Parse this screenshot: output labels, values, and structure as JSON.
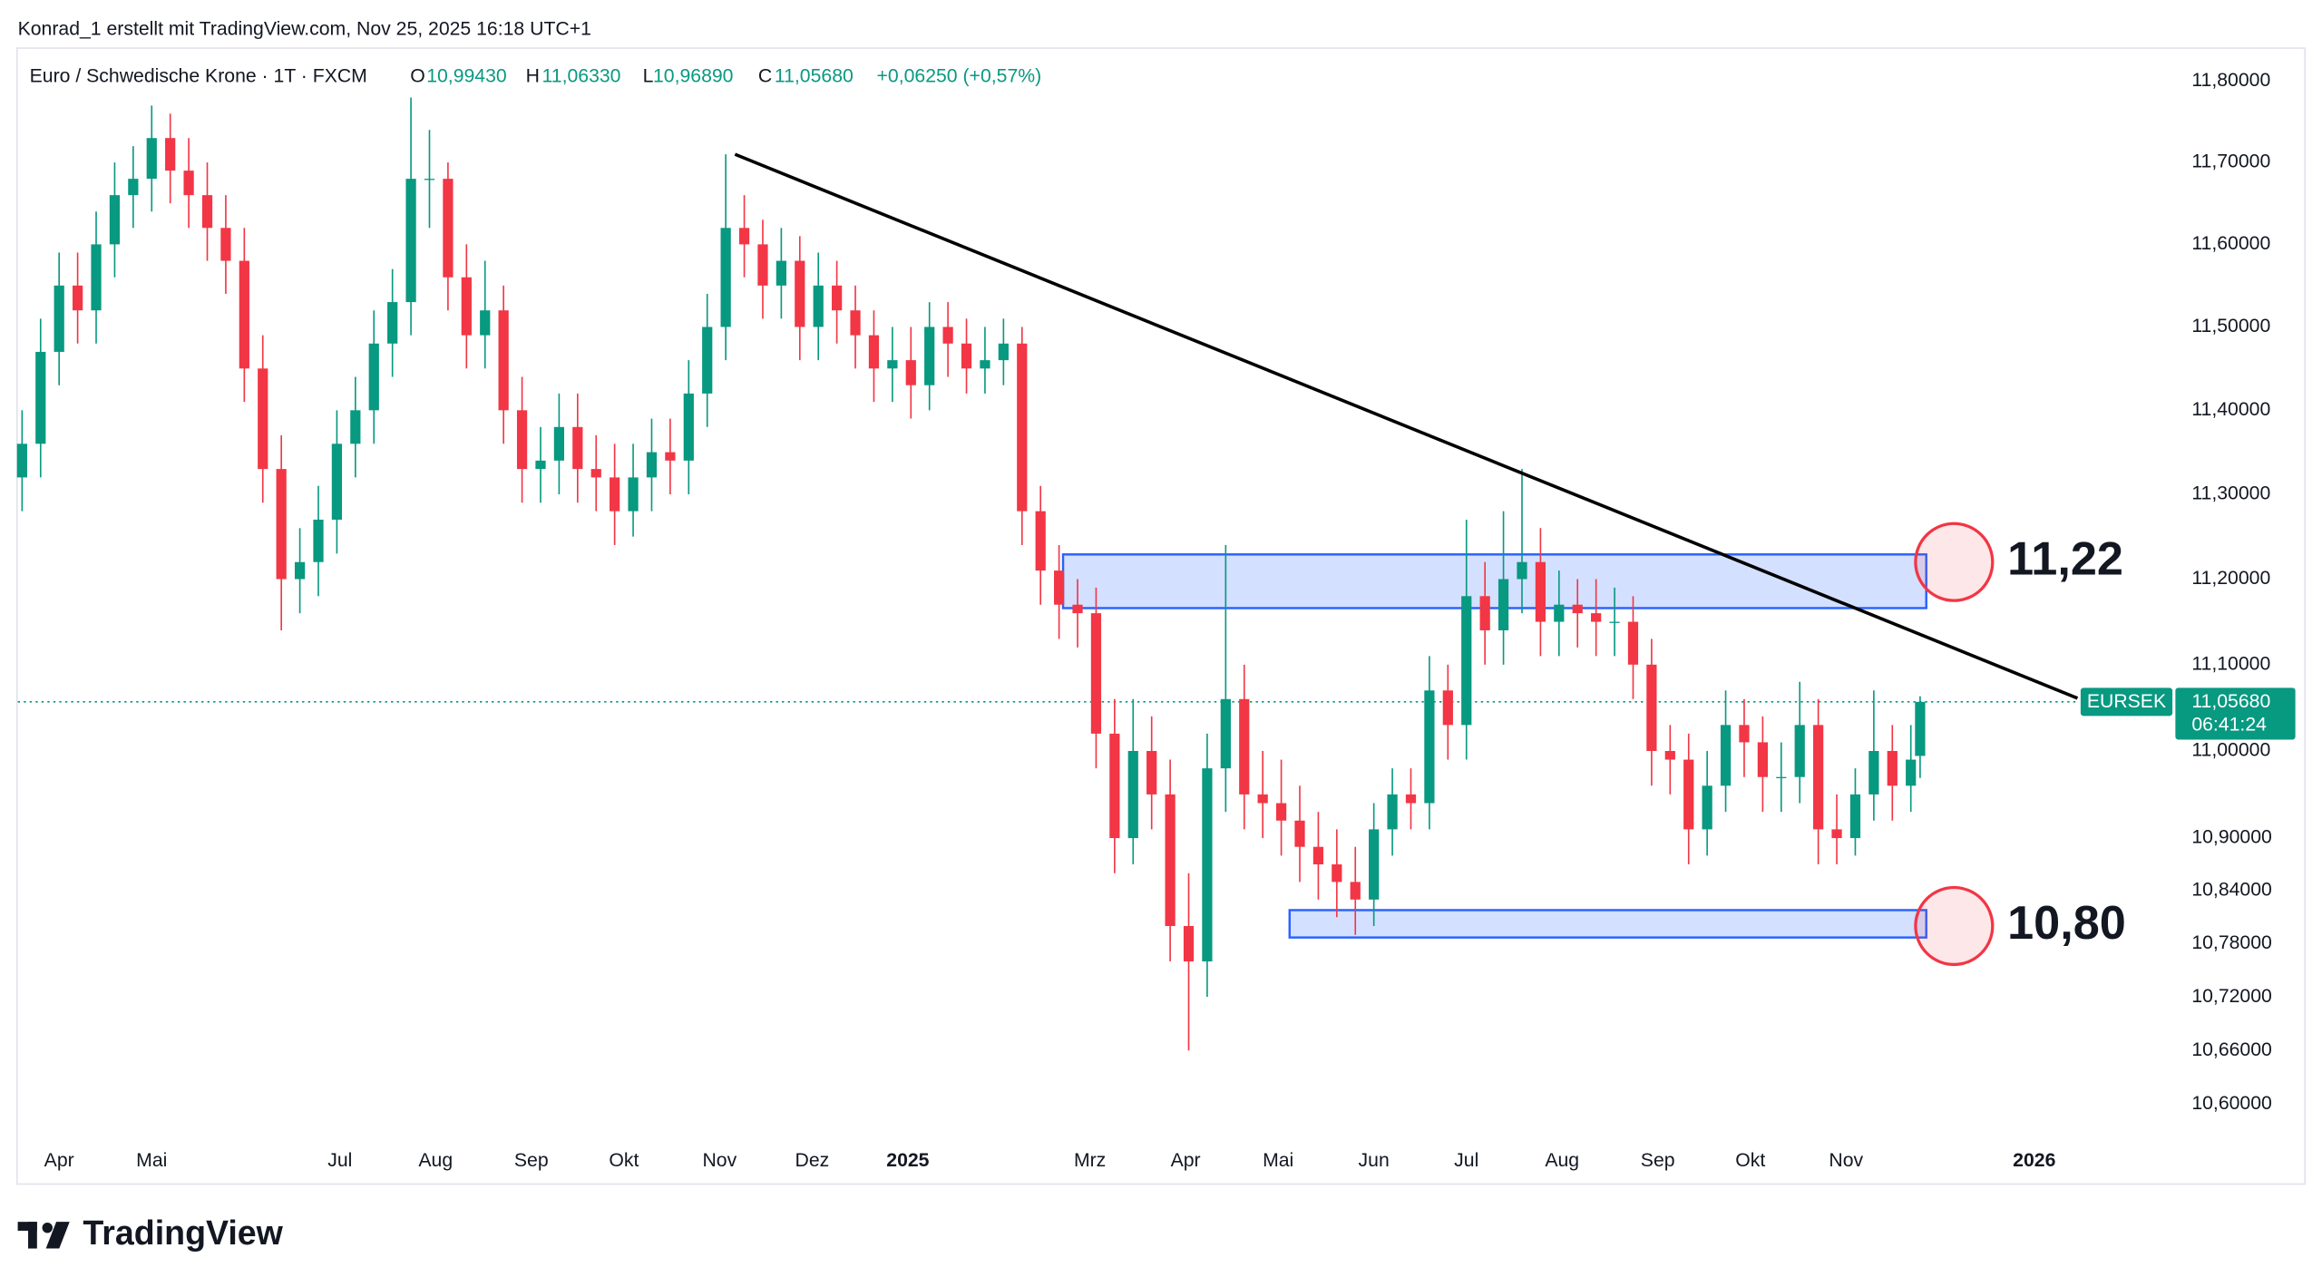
{
  "header": {
    "attribution": "Konrad_1 erstellt mit TradingView.com, Nov 25, 2025 16:18 UTC+1"
  },
  "footer": {
    "brand": "TradingView"
  },
  "chart_data": {
    "type": "candlestick",
    "title": "Euro / Schwedische Krone · 1T · FXCM",
    "ohlc_legend": [
      {
        "key": "O",
        "text": "10,99430"
      },
      {
        "key": "H",
        "text": "11,06330"
      },
      {
        "key": "L",
        "text": "10,96890"
      },
      {
        "key": "C",
        "text": "11,05680"
      }
    ],
    "change": "+0,06250 (+0,57%)",
    "log_scale": true,
    "colors": {
      "up": "#089981",
      "down": "#f23645"
    },
    "xlim": [
      -13.4,
      683.8
    ],
    "ylim": [
      10.56,
      11.842
    ],
    "xticks": [
      {
        "value": 0,
        "label": "Apr"
      },
      {
        "value": 30,
        "label": "Mai"
      },
      {
        "value": 91,
        "label": "Jul"
      },
      {
        "value": 122,
        "label": "Aug"
      },
      {
        "value": 153,
        "label": "Sep"
      },
      {
        "value": 183,
        "label": "Okt"
      },
      {
        "value": 214,
        "label": "Nov"
      },
      {
        "value": 244,
        "label": "Dez"
      },
      {
        "value": 275,
        "label": "2025"
      },
      {
        "value": 334,
        "label": "Mrz"
      },
      {
        "value": 365,
        "label": "Apr"
      },
      {
        "value": 395,
        "label": "Mai"
      },
      {
        "value": 426,
        "label": "Jun"
      },
      {
        "value": 456,
        "label": "Jul"
      },
      {
        "value": 487,
        "label": "Aug"
      },
      {
        "value": 518,
        "label": "Sep"
      },
      {
        "value": 548,
        "label": "Okt"
      },
      {
        "value": 579,
        "label": "Nov"
      },
      {
        "value": 640,
        "label": "2026"
      }
    ],
    "yticks": [
      {
        "value": 11.8,
        "label": "11,80000"
      },
      {
        "value": 11.7,
        "label": "11,70000"
      },
      {
        "value": 11.6,
        "label": "11,60000"
      },
      {
        "value": 11.5,
        "label": "11,50000"
      },
      {
        "value": 11.4,
        "label": "11,40000"
      },
      {
        "value": 11.3,
        "label": "11,30000"
      },
      {
        "value": 11.2,
        "label": "11,20000"
      },
      {
        "value": 11.1,
        "label": "11,10000"
      },
      {
        "value": 11.0,
        "label": "11,00000"
      },
      {
        "value": 10.9,
        "label": "10,90000"
      },
      {
        "value": 10.84,
        "label": "10,84000"
      },
      {
        "value": 10.78,
        "label": "10,78000"
      },
      {
        "value": 10.72,
        "label": "10,72000"
      },
      {
        "value": 10.66,
        "label": "10,66000"
      },
      {
        "value": 10.6,
        "label": "10,60000"
      }
    ],
    "x": [
      -12,
      -6,
      0,
      6,
      12,
      18,
      24,
      30,
      36,
      42,
      48,
      54,
      60,
      66,
      72,
      78,
      84,
      90,
      96,
      102,
      108,
      114,
      120,
      126,
      132,
      138,
      144,
      150,
      156,
      162,
      168,
      174,
      180,
      186,
      192,
      198,
      204,
      210,
      216,
      222,
      228,
      234,
      240,
      246,
      252,
      258,
      264,
      270,
      276,
      282,
      288,
      294,
      300,
      306,
      312,
      318,
      324,
      330,
      336,
      342,
      348,
      354,
      360,
      366,
      372,
      378,
      384,
      390,
      396,
      402,
      408,
      414,
      420,
      426,
      432,
      438,
      444,
      450,
      456,
      462,
      468,
      474,
      480,
      486,
      492,
      498,
      504,
      510,
      516,
      522,
      528,
      534,
      540,
      546,
      552,
      558,
      564,
      570,
      576,
      582,
      588,
      594,
      600,
      603
    ],
    "open": [
      11.32,
      11.36,
      11.47,
      11.55,
      11.52,
      11.6,
      11.66,
      11.68,
      11.73,
      11.69,
      11.66,
      11.62,
      11.58,
      11.45,
      11.33,
      11.2,
      11.22,
      11.27,
      11.36,
      11.4,
      11.48,
      11.53,
      11.68,
      11.68,
      11.56,
      11.49,
      11.52,
      11.4,
      11.33,
      11.34,
      11.38,
      11.33,
      11.32,
      11.28,
      11.32,
      11.35,
      11.34,
      11.42,
      11.5,
      11.62,
      11.6,
      11.55,
      11.58,
      11.5,
      11.55,
      11.52,
      11.49,
      11.45,
      11.46,
      11.43,
      11.5,
      11.48,
      11.45,
      11.46,
      11.48,
      11.28,
      11.21,
      11.17,
      11.16,
      11.02,
      10.9,
      11.0,
      10.95,
      10.8,
      10.76,
      10.98,
      11.06,
      10.95,
      10.94,
      10.92,
      10.89,
      10.87,
      10.85,
      10.83,
      10.91,
      10.95,
      10.94,
      11.07,
      11.03,
      11.18,
      11.14,
      11.2,
      11.22,
      11.15,
      11.17,
      11.16,
      11.15,
      11.15,
      11.1,
      11.0,
      10.99,
      10.91,
      10.96,
      11.03,
      11.01,
      10.97,
      10.97,
      11.03,
      10.91,
      10.9,
      10.95,
      11.0,
      10.96,
      10.9943
    ],
    "high": [
      11.4,
      11.51,
      11.59,
      11.59,
      11.64,
      11.7,
      11.72,
      11.77,
      11.76,
      11.73,
      11.7,
      11.66,
      11.62,
      11.49,
      11.37,
      11.26,
      11.31,
      11.4,
      11.44,
      11.52,
      11.57,
      11.78,
      11.74,
      11.7,
      11.6,
      11.58,
      11.55,
      11.44,
      11.38,
      11.42,
      11.42,
      11.37,
      11.36,
      11.36,
      11.39,
      11.39,
      11.46,
      11.54,
      11.71,
      11.66,
      11.63,
      11.62,
      11.61,
      11.59,
      11.58,
      11.55,
      11.52,
      11.5,
      11.5,
      11.53,
      11.53,
      11.51,
      11.5,
      11.51,
      11.5,
      11.31,
      11.24,
      11.2,
      11.19,
      11.06,
      11.06,
      11.04,
      10.99,
      10.86,
      11.02,
      11.24,
      11.1,
      11.0,
      10.99,
      10.96,
      10.93,
      10.91,
      10.89,
      10.94,
      10.98,
      10.98,
      11.11,
      11.1,
      11.27,
      11.22,
      11.28,
      11.33,
      11.26,
      11.21,
      11.2,
      11.2,
      11.19,
      11.18,
      11.13,
      11.03,
      11.02,
      11.0,
      11.07,
      11.06,
      11.04,
      11.01,
      11.08,
      11.06,
      10.95,
      10.98,
      11.07,
      11.03,
      11.03,
      11.0633
    ],
    "low": [
      11.28,
      11.32,
      11.43,
      11.48,
      11.48,
      11.56,
      11.62,
      11.64,
      11.65,
      11.62,
      11.58,
      11.54,
      11.41,
      11.29,
      11.14,
      11.16,
      11.18,
      11.23,
      11.32,
      11.36,
      11.44,
      11.49,
      11.62,
      11.52,
      11.45,
      11.45,
      11.36,
      11.29,
      11.29,
      11.3,
      11.29,
      11.28,
      11.24,
      11.25,
      11.28,
      11.3,
      11.3,
      11.38,
      11.46,
      11.56,
      11.51,
      11.51,
      11.46,
      11.46,
      11.48,
      11.45,
      11.41,
      11.41,
      11.39,
      11.4,
      11.44,
      11.42,
      11.42,
      11.43,
      11.24,
      11.17,
      11.13,
      11.12,
      10.98,
      10.86,
      10.87,
      10.91,
      10.76,
      10.66,
      10.72,
      10.93,
      10.91,
      10.9,
      10.88,
      10.85,
      10.83,
      10.81,
      10.79,
      10.8,
      10.88,
      10.91,
      10.91,
      10.99,
      10.99,
      11.1,
      11.1,
      11.16,
      11.11,
      11.11,
      11.12,
      11.11,
      11.11,
      11.06,
      10.96,
      10.95,
      10.87,
      10.88,
      10.93,
      10.97,
      10.93,
      10.93,
      10.94,
      10.87,
      10.87,
      10.88,
      10.92,
      10.92,
      10.93,
      10.9689
    ],
    "close": [
      11.36,
      11.47,
      11.55,
      11.52,
      11.6,
      11.66,
      11.68,
      11.73,
      11.69,
      11.66,
      11.62,
      11.58,
      11.45,
      11.33,
      11.2,
      11.22,
      11.27,
      11.36,
      11.4,
      11.48,
      11.53,
      11.68,
      11.68,
      11.56,
      11.49,
      11.52,
      11.4,
      11.33,
      11.34,
      11.38,
      11.33,
      11.32,
      11.28,
      11.32,
      11.35,
      11.34,
      11.42,
      11.5,
      11.62,
      11.6,
      11.55,
      11.58,
      11.5,
      11.55,
      11.52,
      11.49,
      11.45,
      11.46,
      11.43,
      11.5,
      11.48,
      11.45,
      11.46,
      11.48,
      11.28,
      11.21,
      11.17,
      11.16,
      11.02,
      10.9,
      11.0,
      10.95,
      10.8,
      10.76,
      10.98,
      11.06,
      10.95,
      10.94,
      10.92,
      10.89,
      10.87,
      10.85,
      10.83,
      10.91,
      10.95,
      10.94,
      11.07,
      11.03,
      11.18,
      11.14,
      11.2,
      11.22,
      11.15,
      11.17,
      11.16,
      11.15,
      11.15,
      11.1,
      11.0,
      10.99,
      10.91,
      10.96,
      11.03,
      11.01,
      10.97,
      10.97,
      11.03,
      10.91,
      10.9,
      10.95,
      11.0,
      10.96,
      10.99,
      11.0568
    ],
    "last_price": {
      "value": 11.0568,
      "label": "11,05680",
      "countdown": "06:41:24",
      "symbol": "EURSEK",
      "color": "#089981"
    },
    "annotations": {
      "trendline": {
        "x": [
          219,
          654
        ],
        "y": [
          11.71,
          11.061
        ],
        "color": "#000000"
      },
      "zones": [
        {
          "x": [
            325.3,
            605
          ],
          "y": [
            11.166,
            11.229
          ]
        },
        {
          "x": [
            398.7,
            605
          ],
          "y": [
            10.787,
            10.818
          ]
        }
      ],
      "zone_color": "#2962ff",
      "targets": [
        {
          "x": 614,
          "value": 11.22,
          "label": "11,22"
        },
        {
          "x": 614,
          "value": 10.8,
          "label": "10,80"
        }
      ],
      "target_color": "#f23645"
    }
  }
}
